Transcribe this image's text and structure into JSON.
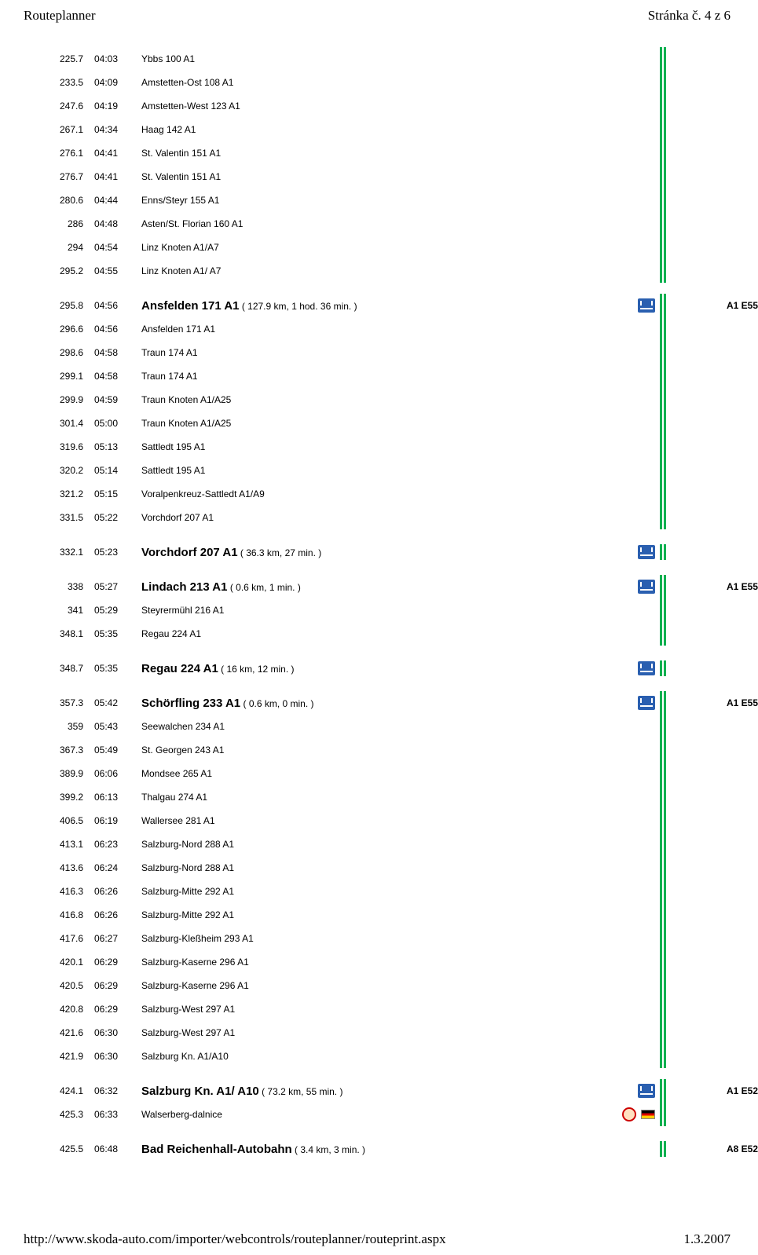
{
  "header": {
    "left": "Routeplanner",
    "right": "Stránka č. 4 z 6"
  },
  "footer": {
    "left": "http://www.skoda-auto.com/importer/webcontrols/routeplanner/routeprint.aspx",
    "right": "1.3.2007"
  },
  "rows": [
    {
      "type": "normal",
      "dist": "225.7",
      "time": "04:03",
      "desc": "Ybbs 100 A1"
    },
    {
      "type": "normal",
      "dist": "233.5",
      "time": "04:09",
      "desc": "Amstetten-Ost 108 A1"
    },
    {
      "type": "normal",
      "dist": "247.6",
      "time": "04:19",
      "desc": "Amstetten-West 123 A1"
    },
    {
      "type": "normal",
      "dist": "267.1",
      "time": "04:34",
      "desc": "Haag 142 A1"
    },
    {
      "type": "normal",
      "dist": "276.1",
      "time": "04:41",
      "desc": "St. Valentin 151 A1"
    },
    {
      "type": "normal",
      "dist": "276.7",
      "time": "04:41",
      "desc": "St. Valentin 151 A1"
    },
    {
      "type": "normal",
      "dist": "280.6",
      "time": "04:44",
      "desc": "Enns/Steyr 155 A1"
    },
    {
      "type": "normal",
      "dist": "286",
      "time": "04:48",
      "desc": "Asten/St. Florian 160 A1"
    },
    {
      "type": "normal",
      "dist": "294",
      "time": "04:54",
      "desc": "Linz Knoten A1/A7"
    },
    {
      "type": "normal",
      "dist": "295.2",
      "time": "04:55",
      "desc": "Linz Knoten A1/ A7"
    },
    {
      "type": "section",
      "dist": "295.8",
      "time": "04:56",
      "main": "Ansfelden 171 A1",
      "sub": " ( 127.9 km, 1 hod. 36 min. )",
      "motorway": true,
      "road": "A1 E55"
    },
    {
      "type": "normal",
      "dist": "296.6",
      "time": "04:56",
      "desc": "Ansfelden 171 A1"
    },
    {
      "type": "normal",
      "dist": "298.6",
      "time": "04:58",
      "desc": "Traun 174 A1"
    },
    {
      "type": "normal",
      "dist": "299.1",
      "time": "04:58",
      "desc": "Traun 174 A1"
    },
    {
      "type": "normal",
      "dist": "299.9",
      "time": "04:59",
      "desc": "Traun Knoten A1/A25"
    },
    {
      "type": "normal",
      "dist": "301.4",
      "time": "05:00",
      "desc": "Traun Knoten A1/A25"
    },
    {
      "type": "normal",
      "dist": "319.6",
      "time": "05:13",
      "desc": "Sattledt 195 A1"
    },
    {
      "type": "normal",
      "dist": "320.2",
      "time": "05:14",
      "desc": "Sattledt 195 A1"
    },
    {
      "type": "normal",
      "dist": "321.2",
      "time": "05:15",
      "desc": "Voralpenkreuz-Sattledt A1/A9"
    },
    {
      "type": "normal",
      "dist": "331.5",
      "time": "05:22",
      "desc": "Vorchdorf 207 A1"
    },
    {
      "type": "section",
      "dist": "332.1",
      "time": "05:23",
      "main": "Vorchdorf 207 A1",
      "sub": " ( 36.3 km, 27 min. )",
      "motorway": true,
      "shortStripe": true
    },
    {
      "type": "section",
      "dist": "338",
      "time": "05:27",
      "main": "Lindach 213 A1",
      "sub": " ( 0.6 km, 1 min. )",
      "motorway": true,
      "road": "A1 E55"
    },
    {
      "type": "normal",
      "dist": "341",
      "time": "05:29",
      "desc": "Steyrermühl 216 A1"
    },
    {
      "type": "normal",
      "dist": "348.1",
      "time": "05:35",
      "desc": "Regau 224 A1"
    },
    {
      "type": "section",
      "dist": "348.7",
      "time": "05:35",
      "main": "Regau 224 A1",
      "sub": " ( 16 km, 12 min. )",
      "motorway": true,
      "shortStripe": true
    },
    {
      "type": "section",
      "dist": "357.3",
      "time": "05:42",
      "main": "Schörfling 233 A1",
      "sub": " ( 0.6 km, 0 min. )",
      "motorway": true,
      "road": "A1 E55"
    },
    {
      "type": "normal",
      "dist": "359",
      "time": "05:43",
      "desc": "Seewalchen 234 A1"
    },
    {
      "type": "normal",
      "dist": "367.3",
      "time": "05:49",
      "desc": "St. Georgen 243 A1"
    },
    {
      "type": "normal",
      "dist": "389.9",
      "time": "06:06",
      "desc": "Mondsee 265 A1"
    },
    {
      "type": "normal",
      "dist": "399.2",
      "time": "06:13",
      "desc": "Thalgau 274 A1"
    },
    {
      "type": "normal",
      "dist": "406.5",
      "time": "06:19",
      "desc": "Wallersee 281 A1"
    },
    {
      "type": "normal",
      "dist": "413.1",
      "time": "06:23",
      "desc": "Salzburg-Nord 288 A1"
    },
    {
      "type": "normal",
      "dist": "413.6",
      "time": "06:24",
      "desc": "Salzburg-Nord 288 A1"
    },
    {
      "type": "normal",
      "dist": "416.3",
      "time": "06:26",
      "desc": "Salzburg-Mitte 292 A1"
    },
    {
      "type": "normal",
      "dist": "416.8",
      "time": "06:26",
      "desc": "Salzburg-Mitte 292 A1"
    },
    {
      "type": "normal",
      "dist": "417.6",
      "time": "06:27",
      "desc": "Salzburg-Kleßheim 293 A1"
    },
    {
      "type": "normal",
      "dist": "420.1",
      "time": "06:29",
      "desc": "Salzburg-Kaserne 296 A1"
    },
    {
      "type": "normal",
      "dist": "420.5",
      "time": "06:29",
      "desc": "Salzburg-Kaserne 296 A1"
    },
    {
      "type": "normal",
      "dist": "420.8",
      "time": "06:29",
      "desc": "Salzburg-West 297 A1"
    },
    {
      "type": "normal",
      "dist": "421.6",
      "time": "06:30",
      "desc": "Salzburg-West 297 A1"
    },
    {
      "type": "normal",
      "dist": "421.9",
      "time": "06:30",
      "desc": "Salzburg Kn. A1/A10"
    },
    {
      "type": "section",
      "dist": "424.1",
      "time": "06:32",
      "main": "Salzburg Kn. A1/ A10",
      "sub": " ( 73.2 km, 55 min. )",
      "motorway": true,
      "road": "A1 E52"
    },
    {
      "type": "normal",
      "dist": "425.3",
      "time": "06:33",
      "desc": "Walserberg-dalnice",
      "border": true,
      "flag": "de"
    },
    {
      "type": "section",
      "dist": "425.5",
      "time": "06:48",
      "main": "Bad Reichenhall-Autobahn",
      "sub": " ( 3.4 km, 3 min. )",
      "road": "A8 E52",
      "shortStripe": true
    }
  ]
}
